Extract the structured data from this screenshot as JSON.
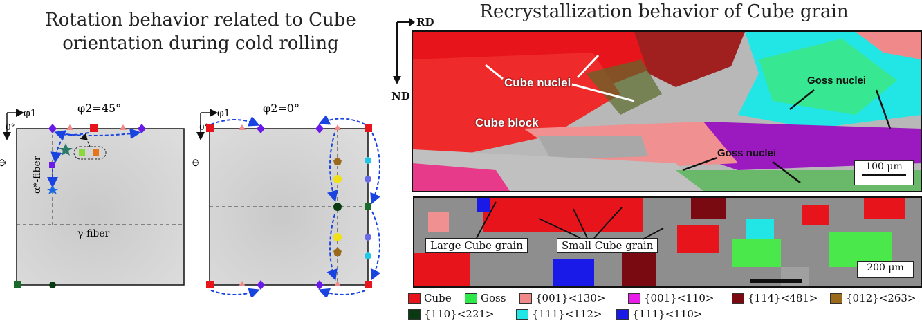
{
  "left_title": {
    "line1": "Rotation behavior related to Cube",
    "line2": "orientation during cold rolling"
  },
  "right_title": "Recrystallization behavior of Cube grain",
  "odf": {
    "left_panel": {
      "section_label": "φ2=45°",
      "phi1_label": "φ1",
      "zero_label": "0°",
      "Phi_label": "Φ",
      "alpha_fiber": "α*-fiber",
      "gamma_fiber": "γ-fiber"
    },
    "right_panel": {
      "section_label": "φ2=0°",
      "phi1_label": "φ1",
      "zero_label": "0°",
      "Phi_label": "Φ"
    }
  },
  "ebsd_top": {
    "rd_label": "RD",
    "nd_label": "ND",
    "cube_nuclei": "Cube nuclei",
    "cube_block": "Cube block",
    "goss_nuclei_top": "Goss nuclei",
    "goss_nuclei_bottom": "Goss nuclei",
    "scale_bar": "100 μm"
  },
  "ebsd_bottom": {
    "large_cube": "Large Cube grain",
    "small_cube": "Small Cube grain",
    "scale_bar": "200 μm"
  },
  "legend": [
    {
      "label": "Cube",
      "color": "#e8141b"
    },
    {
      "label": "Goss",
      "color": "#2ee84a"
    },
    {
      "label": "{001}<130>",
      "color": "#f08a8a"
    },
    {
      "label": "{001}<110>",
      "color": "#e81ee8"
    },
    {
      "label": "{114}<481>",
      "color": "#7a0a12"
    },
    {
      "label": "{012}<263>",
      "color": "#9a6a1a"
    },
    {
      "label": "{110}<221>",
      "color": "#0a3a12"
    },
    {
      "label": "{111}<112>",
      "color": "#22e6e6"
    },
    {
      "label": "{111}<110>",
      "color": "#1a1ae8"
    }
  ]
}
